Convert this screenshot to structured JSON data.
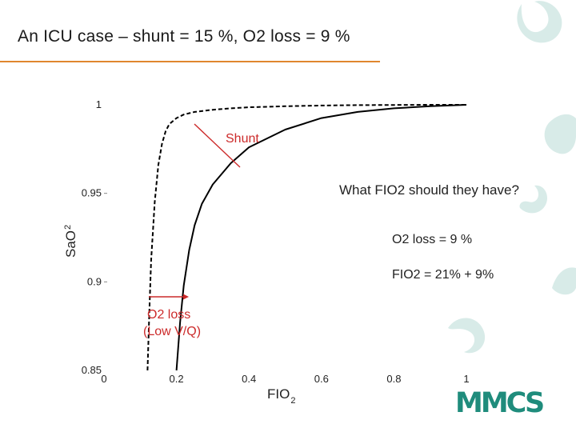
{
  "slide": {
    "title": "An ICU case – shunt = 15 %,  O2 loss = 9 %",
    "logo_text": "MMCS",
    "accent_color": "#e0862e",
    "logo_color": "#1f8c7c",
    "decoration_color": "#d8ebe8"
  },
  "chart_data": {
    "type": "line",
    "xlabel": "FIO",
    "xlabel_sub": "2",
    "ylabel": "SaO",
    "ylabel_sub": "2",
    "xlim": [
      0,
      1
    ],
    "ylim": [
      0.85,
      1
    ],
    "x_ticks": [
      {
        "value": 0,
        "label": "0"
      },
      {
        "value": 0.2,
        "label": "0.2"
      },
      {
        "value": 0.4,
        "label": "0.4"
      },
      {
        "value": 0.6,
        "label": "0.6"
      },
      {
        "value": 0.8,
        "label": "0.8"
      },
      {
        "value": 1,
        "label": "1"
      }
    ],
    "y_ticks": [
      {
        "value": 0.85,
        "label": "0.85"
      },
      {
        "value": 0.9,
        "label": "0.9"
      },
      {
        "value": 0.95,
        "label": "0.95"
      },
      {
        "value": 1,
        "label": "1"
      }
    ],
    "grid": false,
    "series": [
      {
        "style": "dashed",
        "x": [
          0.12,
          0.125,
          0.13,
          0.14,
          0.15,
          0.16,
          0.17,
          0.18,
          0.2,
          0.22,
          0.25,
          0.3,
          0.35,
          0.4,
          0.5,
          0.6,
          0.7,
          0.8,
          0.9,
          1.0
        ],
        "y": [
          0.85,
          0.882,
          0.912,
          0.945,
          0.966,
          0.978,
          0.985,
          0.989,
          0.9925,
          0.9945,
          0.996,
          0.9972,
          0.998,
          0.9986,
          0.9992,
          0.9996,
          0.9998,
          0.9999,
          1.0,
          1.0
        ]
      },
      {
        "style": "solid",
        "x": [
          0.2,
          0.21,
          0.22,
          0.235,
          0.25,
          0.27,
          0.3,
          0.35,
          0.4,
          0.5,
          0.6,
          0.7,
          0.8,
          0.9,
          1.0
        ],
        "y": [
          0.85,
          0.877,
          0.898,
          0.918,
          0.932,
          0.944,
          0.955,
          0.967,
          0.976,
          0.986,
          0.9925,
          0.996,
          0.998,
          0.9992,
          1.0
        ]
      }
    ],
    "annotations": [
      {
        "text": "Shunt",
        "color": "#cc2a2a"
      },
      {
        "text": "O2 loss",
        "color": "#cc2a2a"
      },
      {
        "text": "(Low V/Q)",
        "color": "#cc2a2a"
      },
      {
        "text": "What FIO2 should they have?"
      },
      {
        "text": "O2 loss = 9 %"
      },
      {
        "text": "FIO2 = 21% + 9%"
      }
    ]
  }
}
